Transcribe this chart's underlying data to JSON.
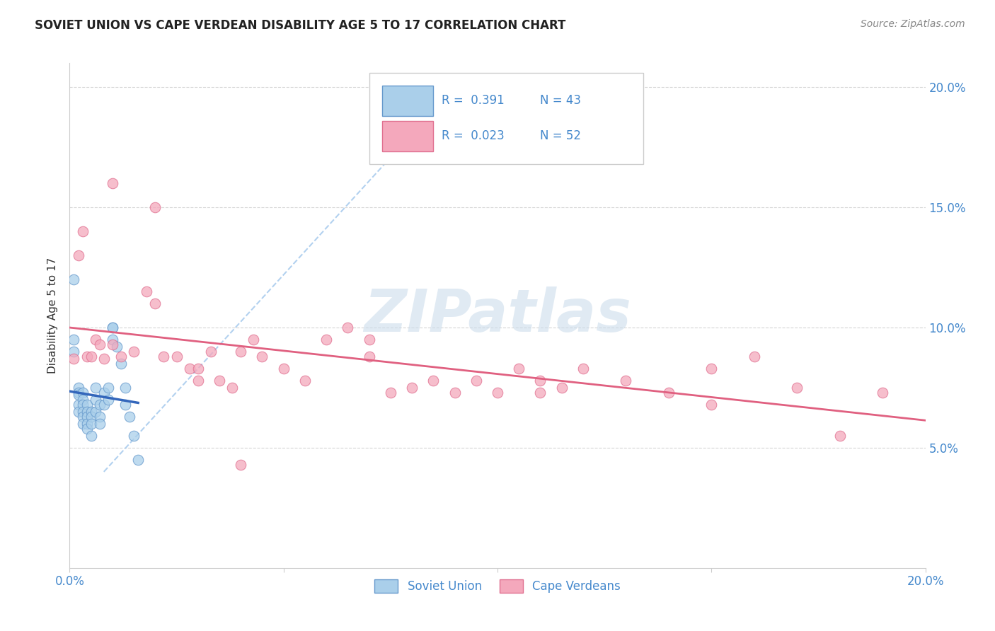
{
  "title": "SOVIET UNION VS CAPE VERDEAN DISABILITY AGE 5 TO 17 CORRELATION CHART",
  "source_text": "Source: ZipAtlas.com",
  "ylabel": "Disability Age 5 to 17",
  "xlim": [
    0.0,
    0.2
  ],
  "ylim": [
    0.0,
    0.21
  ],
  "x_ticks": [
    0.0,
    0.05,
    0.1,
    0.15,
    0.2
  ],
  "y_ticks": [
    0.05,
    0.1,
    0.15,
    0.2
  ],
  "x_tick_labels": [
    "0.0%",
    "",
    "",
    "",
    "20.0%"
  ],
  "y_tick_labels_right": [
    "5.0%",
    "10.0%",
    "15.0%",
    "20.0%"
  ],
  "soviet_R": 0.391,
  "soviet_N": 43,
  "cape_R": 0.023,
  "cape_N": 52,
  "legend_label_soviet": "Soviet Union",
  "legend_label_cape": "Cape Verdeans",
  "soviet_color": "#aacfea",
  "cape_color": "#f4a8bc",
  "soviet_edge_color": "#6699cc",
  "cape_edge_color": "#e07090",
  "soviet_line_color": "#3366bb",
  "cape_line_color": "#e06080",
  "dashed_line_color": "#aaccee",
  "tick_color": "#4488cc",
  "watermark": "ZIPatlas",
  "soviet_x": [
    0.001,
    0.001,
    0.001,
    0.002,
    0.002,
    0.002,
    0.002,
    0.002,
    0.003,
    0.003,
    0.003,
    0.003,
    0.003,
    0.003,
    0.004,
    0.004,
    0.004,
    0.004,
    0.004,
    0.005,
    0.005,
    0.005,
    0.005,
    0.006,
    0.006,
    0.006,
    0.007,
    0.007,
    0.007,
    0.008,
    0.008,
    0.009,
    0.009,
    0.01,
    0.01,
    0.01,
    0.011,
    0.012,
    0.013,
    0.013,
    0.014,
    0.015,
    0.016
  ],
  "soviet_y": [
    0.12,
    0.095,
    0.09,
    0.075,
    0.073,
    0.072,
    0.068,
    0.065,
    0.073,
    0.07,
    0.068,
    0.065,
    0.063,
    0.06,
    0.068,
    0.065,
    0.063,
    0.06,
    0.058,
    0.065,
    0.063,
    0.06,
    0.055,
    0.075,
    0.07,
    0.065,
    0.068,
    0.063,
    0.06,
    0.073,
    0.068,
    0.075,
    0.07,
    0.1,
    0.1,
    0.095,
    0.092,
    0.085,
    0.075,
    0.068,
    0.063,
    0.055,
    0.045
  ],
  "cape_x": [
    0.001,
    0.002,
    0.003,
    0.004,
    0.005,
    0.006,
    0.007,
    0.008,
    0.01,
    0.012,
    0.015,
    0.018,
    0.02,
    0.022,
    0.025,
    0.028,
    0.03,
    0.033,
    0.035,
    0.038,
    0.04,
    0.043,
    0.045,
    0.05,
    0.055,
    0.06,
    0.065,
    0.07,
    0.075,
    0.08,
    0.085,
    0.09,
    0.095,
    0.1,
    0.105,
    0.11,
    0.115,
    0.12,
    0.13,
    0.14,
    0.15,
    0.16,
    0.17,
    0.18,
    0.19,
    0.01,
    0.02,
    0.03,
    0.04,
    0.07,
    0.11,
    0.15
  ],
  "cape_y": [
    0.087,
    0.13,
    0.14,
    0.088,
    0.088,
    0.095,
    0.093,
    0.087,
    0.093,
    0.088,
    0.09,
    0.115,
    0.11,
    0.088,
    0.088,
    0.083,
    0.078,
    0.09,
    0.078,
    0.075,
    0.09,
    0.095,
    0.088,
    0.083,
    0.078,
    0.095,
    0.1,
    0.095,
    0.073,
    0.075,
    0.078,
    0.073,
    0.078,
    0.073,
    0.083,
    0.078,
    0.075,
    0.083,
    0.078,
    0.073,
    0.083,
    0.088,
    0.075,
    0.055,
    0.073,
    0.16,
    0.15,
    0.083,
    0.043,
    0.088,
    0.073,
    0.068
  ]
}
